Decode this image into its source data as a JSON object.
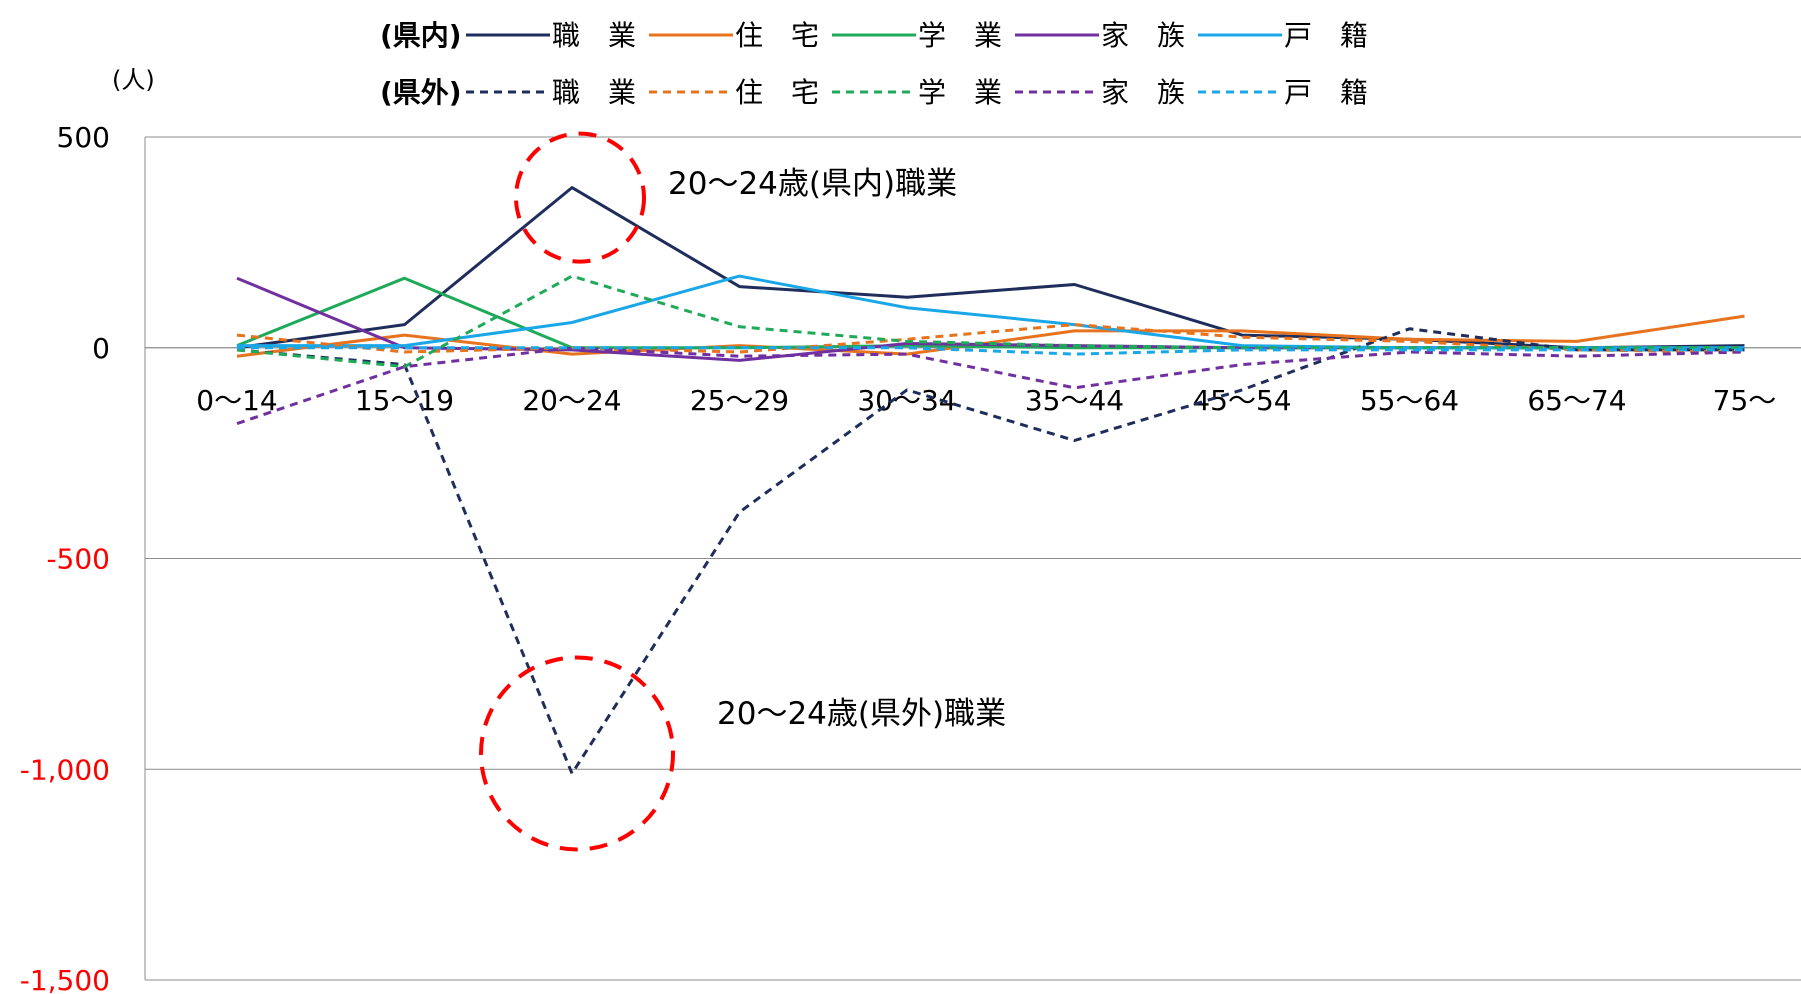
{
  "chart_data": {
    "type": "line",
    "y_unit_label": "(人)",
    "categories": [
      "0〜14",
      "15〜19",
      "20〜24",
      "25〜29",
      "30〜34",
      "35〜44",
      "45〜54",
      "55〜64",
      "65〜74",
      "75〜"
    ],
    "ylim": [
      -1500,
      500
    ],
    "yticks": [
      {
        "value": 500,
        "label": "500",
        "color": "#000000"
      },
      {
        "value": 0,
        "label": "0",
        "color": "#000000"
      },
      {
        "value": -500,
        "label": "-500",
        "color": "#ff0000"
      },
      {
        "value": -1000,
        "label": "-1,000",
        "color": "#ff0000"
      },
      {
        "value": -1500,
        "label": "-1,500",
        "color": "#ff0000"
      }
    ],
    "grid": "horizontal",
    "legend_position": "top",
    "legend_rows": [
      {
        "label": "(県内)",
        "dashed": false
      },
      {
        "label": "(県外)",
        "dashed": true
      }
    ],
    "series": [
      {
        "name": "職　業",
        "group": "(県内)",
        "color": "#1f2d5c",
        "dashed": false,
        "values": [
          0,
          55,
          380,
          145,
          120,
          150,
          30,
          20,
          0,
          5
        ]
      },
      {
        "name": "住　宅",
        "group": "(県内)",
        "color": "#e8731e",
        "dashed": false,
        "values": [
          -20,
          30,
          -15,
          5,
          -15,
          40,
          40,
          20,
          15,
          75
        ]
      },
      {
        "name": "学　業",
        "group": "(県内)",
        "color": "#1faa5a",
        "dashed": false,
        "values": [
          5,
          165,
          0,
          0,
          5,
          0,
          0,
          0,
          0,
          0
        ]
      },
      {
        "name": "家　族",
        "group": "(県内)",
        "color": "#7030a0",
        "dashed": false,
        "values": [
          165,
          0,
          -5,
          -30,
          10,
          5,
          0,
          0,
          0,
          0
        ]
      },
      {
        "name": "戸　籍",
        "group": "(県内)",
        "color": "#1aa7e8",
        "dashed": false,
        "values": [
          5,
          5,
          60,
          170,
          95,
          55,
          5,
          0,
          0,
          0
        ]
      },
      {
        "name": "職　業",
        "group": "(県外)",
        "color": "#1f2d5c",
        "dashed": true,
        "values": [
          -5,
          -40,
          -1010,
          -390,
          -100,
          -220,
          -100,
          45,
          -5,
          -5
        ]
      },
      {
        "name": "住　宅",
        "group": "(県外)",
        "color": "#e8731e",
        "dashed": true,
        "values": [
          30,
          -10,
          0,
          -10,
          20,
          55,
          25,
          15,
          -5,
          -10
        ]
      },
      {
        "name": "学　業",
        "group": "(県外)",
        "color": "#1faa5a",
        "dashed": true,
        "values": [
          -5,
          -45,
          170,
          50,
          15,
          5,
          0,
          0,
          0,
          0
        ]
      },
      {
        "name": "家　族",
        "group": "(県外)",
        "color": "#7030a0",
        "dashed": true,
        "values": [
          -180,
          -45,
          0,
          -20,
          -15,
          -95,
          -40,
          -10,
          -20,
          -10
        ]
      },
      {
        "name": "戸　籍",
        "group": "(県外)",
        "color": "#1aa7e8",
        "dashed": true,
        "values": [
          0,
          0,
          0,
          0,
          0,
          -15,
          -5,
          -5,
          -5,
          -5
        ]
      }
    ],
    "annotations": [
      {
        "text": "20〜24歳(県内)職業",
        "category_index": 2,
        "value": 380,
        "circle_color": "#ff0000"
      },
      {
        "text": "20〜24歳(県外)職業",
        "category_index": 2,
        "value": -1010,
        "circle_color": "#ff0000"
      }
    ]
  }
}
